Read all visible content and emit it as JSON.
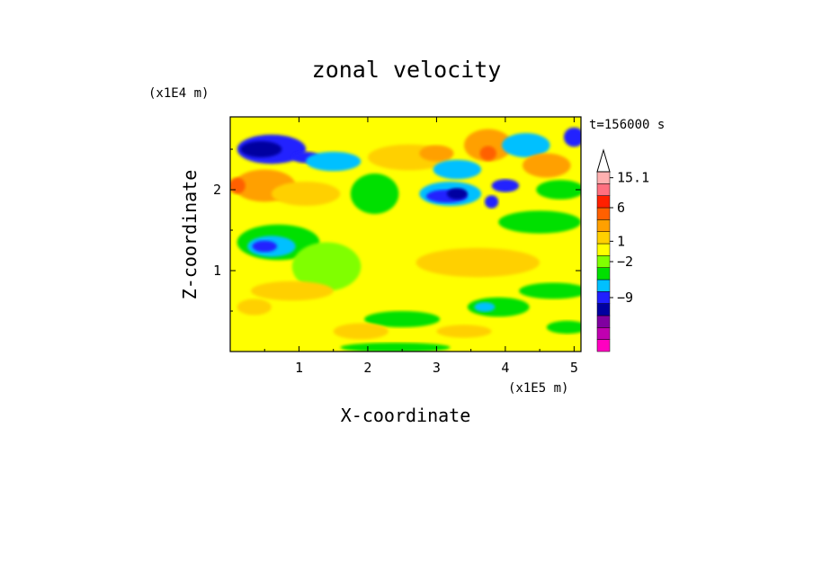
{
  "chart_data": {
    "type": "heatmap",
    "title": "zonal velocity",
    "xlabel": "X-coordinate",
    "ylabel": "Z-coordinate",
    "x_multiplier": "(x1E5 m)",
    "y_multiplier": "(x1E4 m)",
    "time_label": "t=156000 s",
    "xlim": [
      0,
      5.1
    ],
    "ylim": [
      0,
      2.9
    ],
    "x_ticks": [
      1,
      2,
      3,
      4,
      5
    ],
    "y_ticks": [
      1,
      2
    ],
    "colorbar": {
      "levels_bottom_to_top": [
        "#ff00c0",
        "#c000b0",
        "#8000a0",
        "#0000a0",
        "#2020ff",
        "#00c0ff",
        "#00e000",
        "#80ff00",
        "#ffff00",
        "#ffd000",
        "#ffa000",
        "#ff6000",
        "#ff2000",
        "#ff7080",
        "#ffb0b0"
      ],
      "labels": [
        {
          "text": "15.1",
          "level": 14.5
        },
        {
          "text": "6",
          "level": 12
        },
        {
          "text": "1",
          "level": 9.2
        },
        {
          "text": "−2",
          "level": 7.5
        },
        {
          "text": "−9",
          "level": 4.5
        }
      ],
      "extend_max_color": "#ffffff"
    },
    "blobs": [
      {
        "x": 0.6,
        "z": 2.5,
        "rx": 0.5,
        "rz": 0.18,
        "c": "#2020ff"
      },
      {
        "x": 0.45,
        "z": 2.5,
        "rx": 0.3,
        "rz": 0.1,
        "c": "#0000a0"
      },
      {
        "x": 1.1,
        "z": 2.4,
        "rx": 0.2,
        "rz": 0.07,
        "c": "#2020ff"
      },
      {
        "x": 1.5,
        "z": 2.35,
        "rx": 0.4,
        "rz": 0.12,
        "c": "#00c0ff"
      },
      {
        "x": 0.5,
        "z": 2.05,
        "rx": 0.45,
        "rz": 0.2,
        "c": "#ffa000"
      },
      {
        "x": 0.1,
        "z": 2.05,
        "rx": 0.12,
        "rz": 0.1,
        "c": "#ff6000"
      },
      {
        "x": 1.1,
        "z": 1.95,
        "rx": 0.5,
        "rz": 0.15,
        "c": "#ffd000"
      },
      {
        "x": 2.1,
        "z": 1.95,
        "rx": 0.35,
        "rz": 0.25,
        "c": "#00e000"
      },
      {
        "x": 2.6,
        "z": 2.4,
        "rx": 0.6,
        "rz": 0.16,
        "c": "#ffd000"
      },
      {
        "x": 3.0,
        "z": 2.45,
        "rx": 0.25,
        "rz": 0.1,
        "c": "#ffa000"
      },
      {
        "x": 3.3,
        "z": 2.25,
        "rx": 0.35,
        "rz": 0.12,
        "c": "#00c0ff"
      },
      {
        "x": 3.2,
        "z": 1.95,
        "rx": 0.45,
        "rz": 0.15,
        "c": "#00c0ff"
      },
      {
        "x": 3.15,
        "z": 1.92,
        "rx": 0.3,
        "rz": 0.08,
        "c": "#2020ff"
      },
      {
        "x": 3.3,
        "z": 1.95,
        "rx": 0.15,
        "rz": 0.07,
        "c": "#0000a0"
      },
      {
        "x": 3.8,
        "z": 1.85,
        "rx": 0.1,
        "rz": 0.08,
        "c": "#2020ff"
      },
      {
        "x": 4.0,
        "z": 2.05,
        "rx": 0.2,
        "rz": 0.08,
        "c": "#2020ff"
      },
      {
        "x": 3.75,
        "z": 2.55,
        "rx": 0.35,
        "rz": 0.2,
        "c": "#ffa000"
      },
      {
        "x": 3.75,
        "z": 2.45,
        "rx": 0.12,
        "rz": 0.09,
        "c": "#ff6000"
      },
      {
        "x": 4.3,
        "z": 2.55,
        "rx": 0.35,
        "rz": 0.15,
        "c": "#00c0ff"
      },
      {
        "x": 4.6,
        "z": 2.3,
        "rx": 0.35,
        "rz": 0.15,
        "c": "#ffa000"
      },
      {
        "x": 4.8,
        "z": 2.0,
        "rx": 0.35,
        "rz": 0.12,
        "c": "#00e000"
      },
      {
        "x": 5.0,
        "z": 2.65,
        "rx": 0.15,
        "rz": 0.12,
        "c": "#2020ff"
      },
      {
        "x": 4.5,
        "z": 1.6,
        "rx": 0.6,
        "rz": 0.14,
        "c": "#00e000"
      },
      {
        "x": 0.7,
        "z": 1.35,
        "rx": 0.6,
        "rz": 0.22,
        "c": "#00e000"
      },
      {
        "x": 0.6,
        "z": 1.3,
        "rx": 0.35,
        "rz": 0.13,
        "c": "#00c0ff"
      },
      {
        "x": 0.5,
        "z": 1.3,
        "rx": 0.18,
        "rz": 0.07,
        "c": "#2020ff"
      },
      {
        "x": 1.4,
        "z": 1.05,
        "rx": 0.5,
        "rz": 0.3,
        "c": "#80ff00"
      },
      {
        "x": 2.6,
        "z": 1.5,
        "rx": 0.7,
        "rz": 0.18,
        "c": "#ffff00"
      },
      {
        "x": 3.6,
        "z": 1.1,
        "rx": 0.9,
        "rz": 0.18,
        "c": "#ffd000"
      },
      {
        "x": 4.7,
        "z": 0.75,
        "rx": 0.5,
        "rz": 0.1,
        "c": "#00e000"
      },
      {
        "x": 0.9,
        "z": 0.75,
        "rx": 0.6,
        "rz": 0.12,
        "c": "#ffd000"
      },
      {
        "x": 0.35,
        "z": 0.55,
        "rx": 0.25,
        "rz": 0.1,
        "c": "#ffd000"
      },
      {
        "x": 3.9,
        "z": 0.55,
        "rx": 0.45,
        "rz": 0.12,
        "c": "#00e000"
      },
      {
        "x": 3.7,
        "z": 0.55,
        "rx": 0.15,
        "rz": 0.06,
        "c": "#00c0ff"
      },
      {
        "x": 2.5,
        "z": 0.4,
        "rx": 0.55,
        "rz": 0.1,
        "c": "#00e000"
      },
      {
        "x": 1.9,
        "z": 0.25,
        "rx": 0.4,
        "rz": 0.1,
        "c": "#ffd000"
      },
      {
        "x": 3.4,
        "z": 0.25,
        "rx": 0.4,
        "rz": 0.08,
        "c": "#ffd000"
      },
      {
        "x": 2.4,
        "z": 0.05,
        "rx": 0.8,
        "rz": 0.06,
        "c": "#00e000"
      },
      {
        "x": 4.9,
        "z": 0.3,
        "rx": 0.3,
        "rz": 0.08,
        "c": "#00e000"
      }
    ]
  }
}
